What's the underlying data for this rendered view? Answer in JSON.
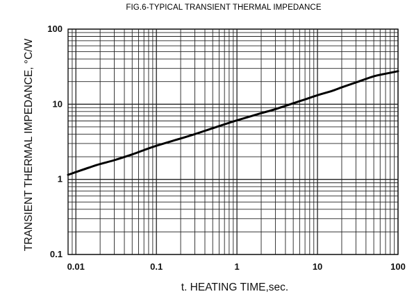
{
  "chart_data": {
    "type": "line",
    "title": "FIG.6-TYPICAL TRANSIENT THERMAL IMPEDANCE",
    "xlabel": "t. HEATING TIME,sec.",
    "ylabel": "TRANSIENT THERMAL IMPEDANCE, °C/W",
    "x_scale": "log",
    "y_scale": "log",
    "xlim": [
      0.008,
      100
    ],
    "ylim": [
      0.1,
      100
    ],
    "x_ticks": [
      {
        "value": 0.01,
        "label": "0.01"
      },
      {
        "value": 0.1,
        "label": "0.1"
      },
      {
        "value": 1,
        "label": "1"
      },
      {
        "value": 10,
        "label": "10"
      },
      {
        "value": 100,
        "label": "100"
      }
    ],
    "y_ticks": [
      {
        "value": 0.1,
        "label": "0.1"
      },
      {
        "value": 1,
        "label": "1"
      },
      {
        "value": 10,
        "label": "10"
      },
      {
        "value": 100,
        "label": "100"
      }
    ],
    "grid": true,
    "series": [
      {
        "color": "#000000",
        "x": [
          0.008,
          0.01,
          0.015,
          0.02,
          0.03,
          0.05,
          0.07,
          0.1,
          0.2,
          0.3,
          0.5,
          0.7,
          1,
          2,
          3,
          5,
          7,
          10,
          15,
          20,
          30,
          50,
          70,
          100
        ],
        "y": [
          1.15,
          1.25,
          1.45,
          1.6,
          1.8,
          2.15,
          2.45,
          2.8,
          3.5,
          4.0,
          4.8,
          5.4,
          6.1,
          7.6,
          8.6,
          10.3,
          11.6,
          13.2,
          15.0,
          16.8,
          19.5,
          23.5,
          25.5,
          27.5
        ]
      }
    ]
  }
}
